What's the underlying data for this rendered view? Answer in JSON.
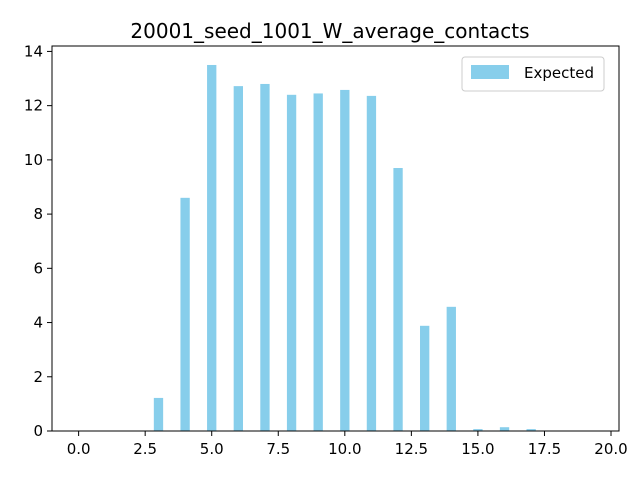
{
  "chart_data": {
    "type": "bar",
    "title": "20001_seed_1001_W_average_contacts",
    "xlabel": "",
    "ylabel": "",
    "xlim": [
      -1,
      20.3
    ],
    "ylim": [
      0,
      14.2
    ],
    "bar_width": 0.35,
    "x_ticks": [
      0,
      2.5,
      5,
      7.5,
      10,
      12.5,
      15,
      17.5,
      20
    ],
    "x_tick_labels": [
      "0.0",
      "2.5",
      "5.0",
      "7.5",
      "10.0",
      "12.5",
      "15.0",
      "17.5",
      "20.0"
    ],
    "y_ticks": [
      0,
      2,
      4,
      6,
      8,
      10,
      12,
      14
    ],
    "y_tick_labels": [
      "0",
      "2",
      "4",
      "6",
      "8",
      "10",
      "12",
      "14"
    ],
    "grid": false,
    "legend_position": "top-right",
    "series": [
      {
        "name": "Expected",
        "color": "#87ceeb",
        "x": [
          3,
          4,
          5,
          6,
          7,
          8,
          9,
          10,
          11,
          12,
          13,
          14,
          15,
          16,
          17
        ],
        "values": [
          1.22,
          8.6,
          13.5,
          12.72,
          12.8,
          12.4,
          12.45,
          12.58,
          12.36,
          9.7,
          3.88,
          4.58,
          0.07,
          0.14,
          0.07
        ]
      }
    ]
  }
}
